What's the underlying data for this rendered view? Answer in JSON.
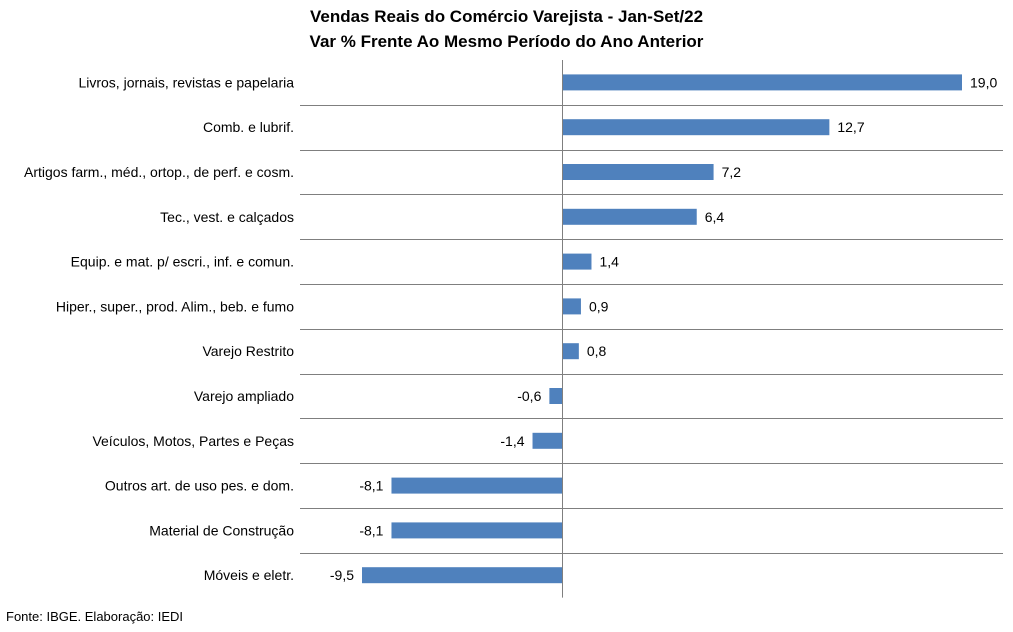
{
  "chart_data": {
    "type": "bar",
    "orientation": "horizontal",
    "title": "Vendas Reais do Comércio Varejista - Jan-Set/22",
    "subtitle": "Var % Frente Ao Mesmo Período do Ano Anterior",
    "categories": [
      "Livros, jornais, revistas e papelaria",
      "Comb. e lubrif.",
      "Artigos farm., méd., ortop., de perf. e cosm.",
      "Tec., vest. e calçados",
      "Equip. e mat. p/ escri., inf. e comun.",
      "Hiper., super., prod. Alim., beb. e fumo",
      "Varejo Restrito",
      "Varejo ampliado",
      "Veículos, Motos, Partes e Peças",
      "Outros art. de uso pes. e dom.",
      "Material de Construção",
      "Móveis e eletr."
    ],
    "values": [
      19.0,
      12.7,
      7.2,
      6.4,
      1.4,
      0.9,
      0.8,
      -0.6,
      -1.4,
      -8.1,
      -8.1,
      -9.5
    ],
    "data_labels": [
      "19,0",
      "12,7",
      "7,2",
      "6,4",
      "1,4",
      "0,9",
      "0,8",
      "-0,6",
      "-1,4",
      "-8,1",
      "-8,1",
      "-9,5"
    ],
    "xlim": [
      -9.5,
      19.0
    ],
    "bar_color": "#4F81BD",
    "gridline_color": "#7F7F7F",
    "grid": "horizontal separators between categories",
    "legend": "none"
  },
  "source": "Fonte: IBGE. Elaboração: IEDI"
}
